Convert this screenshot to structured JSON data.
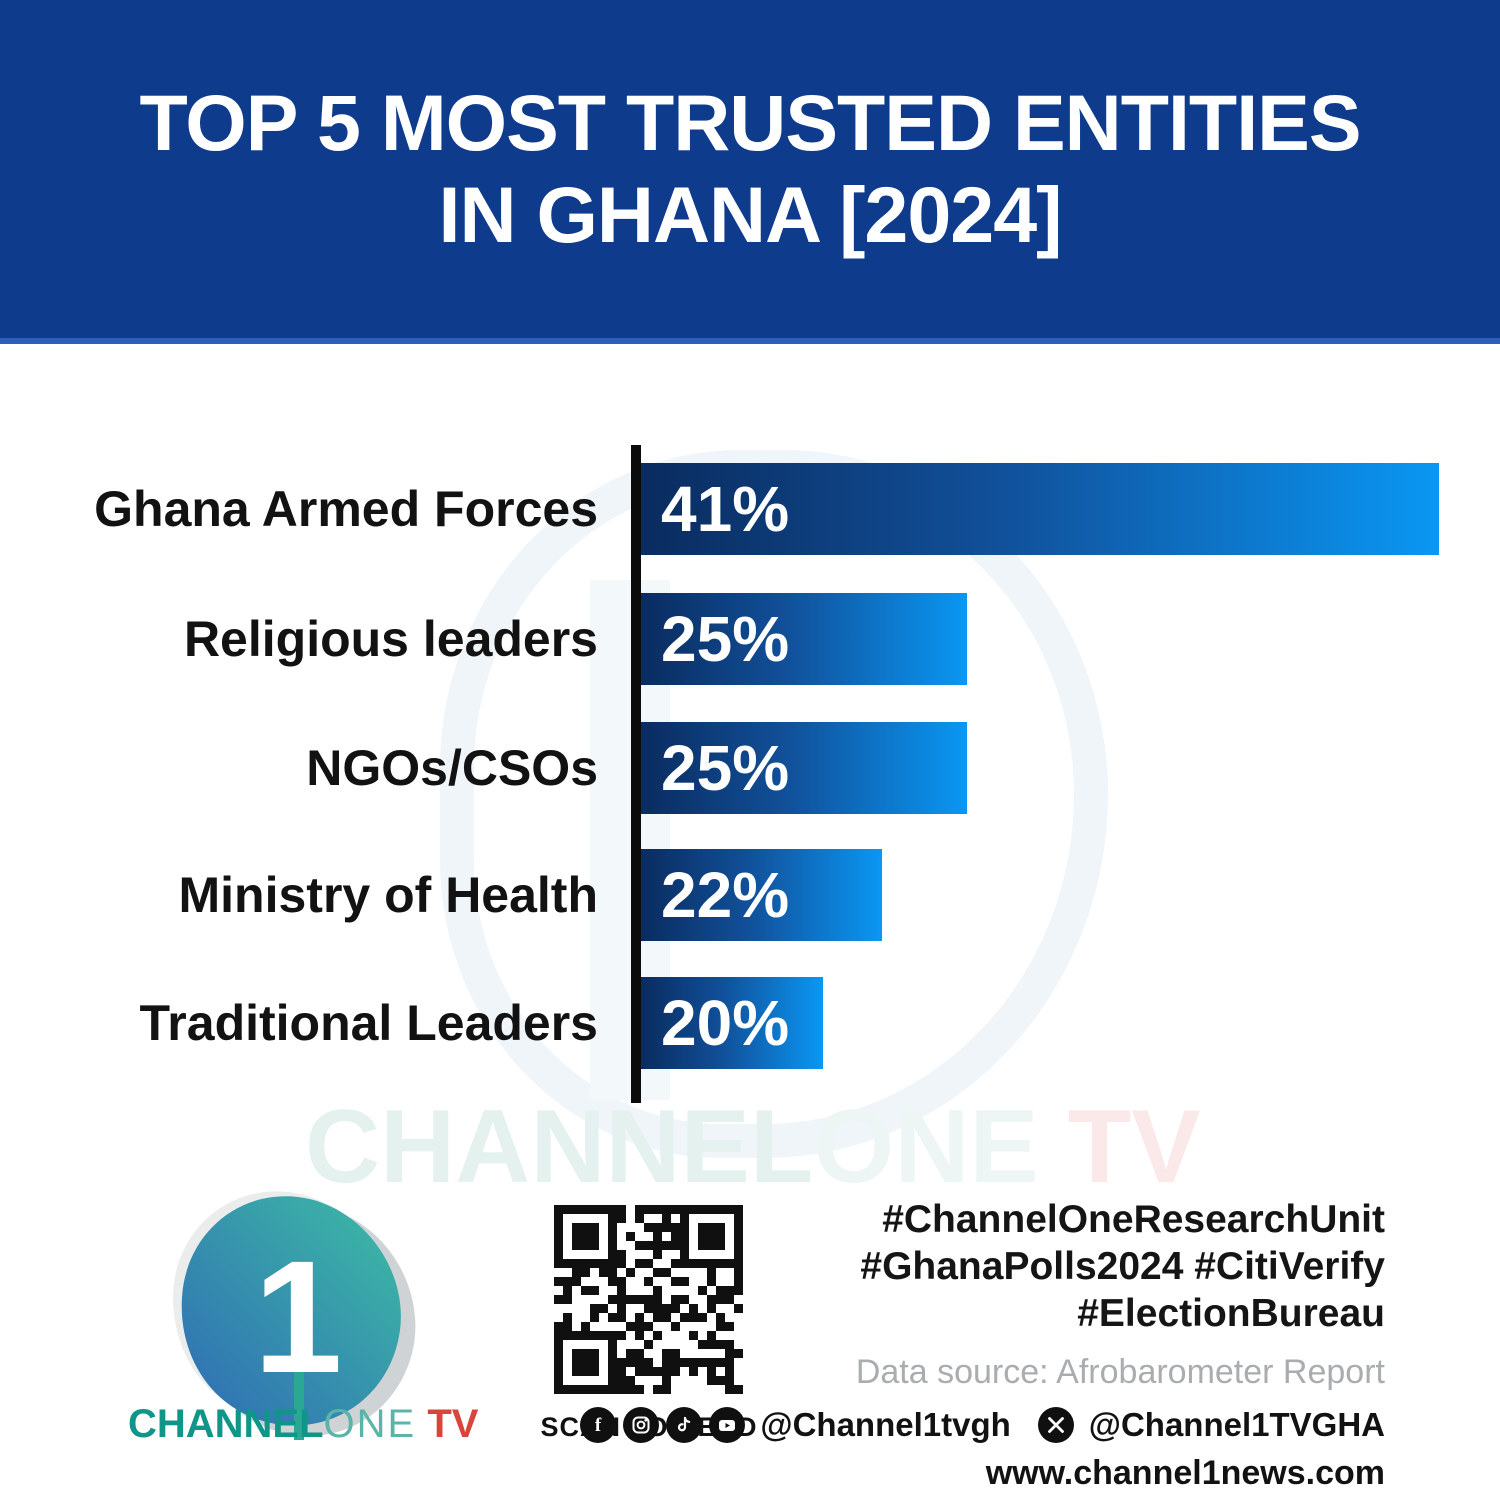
{
  "banner": {
    "title_line1": "TOP 5 MOST TRUSTED ENTITIES",
    "title_line2": "IN GHANA [2024]",
    "bg_color": "#0f3b8d",
    "text_color": "#ffffff"
  },
  "chart_data": {
    "type": "bar",
    "orientation": "horizontal",
    "title": "TOP 5 MOST TRUSTED ENTITIES IN GHANA [2024]",
    "categories": [
      "Ghana Armed Forces",
      "Religious leaders",
      "NGOs/CSOs",
      "Ministry of Health",
      "Traditional Leaders"
    ],
    "values": [
      41,
      25,
      25,
      22,
      20
    ],
    "labels": [
      "41%",
      "25%",
      "25%",
      "22%",
      "20%"
    ],
    "unit": "%",
    "bar_display_pct": [
      100,
      40.9,
      40.9,
      30.2,
      22.8
    ],
    "bar_gradient_start": "#0a2c5f",
    "bar_gradient_end": "#0a97f3",
    "value_label_color": "#ffffff",
    "category_label_color": "#121212",
    "axis_color": "#0b0b0b",
    "grid": false,
    "legend": false
  },
  "watermark": {
    "part1": "CHANNEL",
    "part2": "ONE",
    "part3": " TV"
  },
  "footer": {
    "logo": {
      "wordmark_channel": "CHANNEL",
      "wordmark_one": "ONE",
      "wordmark_tv": " TV",
      "pick_gradient_start": "#3dbda4",
      "pick_gradient_end": "#2f6ab5",
      "numeral": "1"
    },
    "qr_caption": "SCAN TO READ",
    "hashtags": [
      "#ChannelOneResearchUnit",
      "#GhanaPolls2024 #CitiVerify",
      "#ElectionBureau"
    ],
    "data_source": "Data source: Afrobarometer Report",
    "social_handle_1": "@Channel1tvgh",
    "social_handle_2": "@Channel1TVGHA",
    "website": "www.channel1news.com",
    "icons": [
      "facebook-icon",
      "instagram-icon",
      "tiktok-icon",
      "youtube-icon",
      "x-icon"
    ]
  }
}
